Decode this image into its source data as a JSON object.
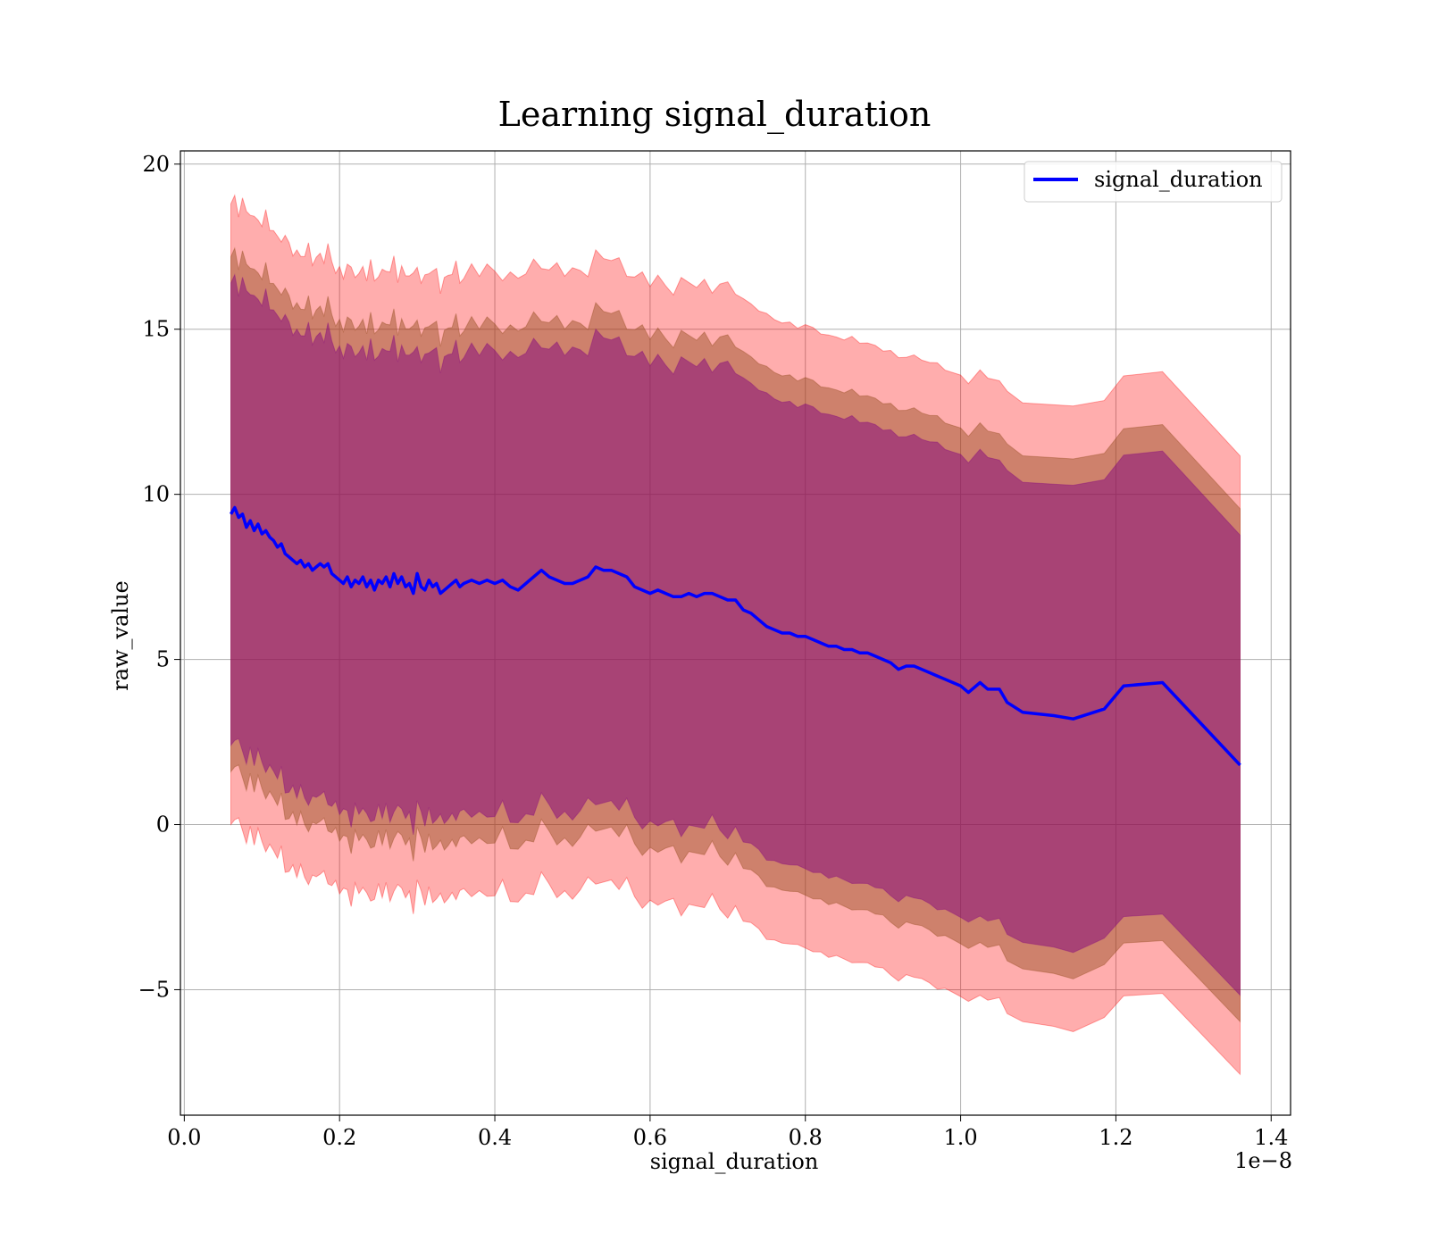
{
  "chart_data": {
    "type": "area",
    "title": "Learning signal_duration",
    "xlabel": "signal_duration",
    "ylabel": "raw_value",
    "x_offset_label": "1e−8",
    "xlim": [
      -0.005,
      1.425
    ],
    "ylim": [
      -8.8,
      20.4
    ],
    "x_ticks": [
      0.0,
      0.2,
      0.4,
      0.6,
      0.8,
      1.0,
      1.2,
      1.4
    ],
    "x_tick_labels": [
      "0.0",
      "0.2",
      "0.4",
      "0.6",
      "0.8",
      "1.0",
      "1.2",
      "1.4"
    ],
    "y_ticks": [
      -5,
      0,
      5,
      10,
      15,
      20
    ],
    "y_tick_labels": [
      "−5",
      "0",
      "5",
      "10",
      "15",
      "20"
    ],
    "grid": true,
    "legend": {
      "position": "top-right",
      "entries": [
        "signal_duration"
      ]
    },
    "colors": {
      "line": "#0000ff",
      "outer_band": "#ff0000",
      "middle_band": "#8b4513",
      "inner_band": "#800080"
    },
    "x": [
      0.06,
      0.065,
      0.07,
      0.075,
      0.08,
      0.085,
      0.09,
      0.095,
      0.1,
      0.105,
      0.11,
      0.115,
      0.12,
      0.125,
      0.13,
      0.135,
      0.14,
      0.145,
      0.15,
      0.155,
      0.16,
      0.165,
      0.17,
      0.175,
      0.18,
      0.185,
      0.19,
      0.195,
      0.2,
      0.205,
      0.21,
      0.215,
      0.22,
      0.225,
      0.23,
      0.235,
      0.24,
      0.245,
      0.25,
      0.255,
      0.26,
      0.265,
      0.27,
      0.275,
      0.28,
      0.285,
      0.29,
      0.295,
      0.3,
      0.305,
      0.31,
      0.315,
      0.32,
      0.325,
      0.33,
      0.335,
      0.34,
      0.345,
      0.35,
      0.355,
      0.36,
      0.37,
      0.38,
      0.39,
      0.4,
      0.41,
      0.42,
      0.43,
      0.44,
      0.45,
      0.46,
      0.47,
      0.48,
      0.49,
      0.5,
      0.51,
      0.52,
      0.53,
      0.54,
      0.55,
      0.56,
      0.57,
      0.58,
      0.59,
      0.6,
      0.61,
      0.62,
      0.63,
      0.64,
      0.65,
      0.66,
      0.67,
      0.68,
      0.69,
      0.7,
      0.71,
      0.72,
      0.73,
      0.74,
      0.75,
      0.76,
      0.77,
      0.78,
      0.79,
      0.8,
      0.81,
      0.82,
      0.83,
      0.84,
      0.85,
      0.86,
      0.87,
      0.88,
      0.89,
      0.9,
      0.91,
      0.92,
      0.93,
      0.94,
      0.95,
      0.96,
      0.97,
      0.98,
      0.99,
      1.0,
      1.01,
      1.025,
      1.035,
      1.05,
      1.06,
      1.08,
      1.12,
      1.145,
      1.185,
      1.21,
      1.26,
      1.36
    ],
    "series": [
      {
        "name": "signal_duration",
        "values": [
          9.4,
          9.6,
          9.3,
          9.4,
          9.0,
          9.2,
          8.9,
          9.1,
          8.8,
          8.9,
          8.7,
          8.6,
          8.4,
          8.5,
          8.2,
          8.1,
          8.0,
          7.9,
          8.0,
          7.8,
          7.9,
          7.7,
          7.8,
          7.9,
          7.8,
          7.9,
          7.6,
          7.5,
          7.4,
          7.3,
          7.5,
          7.2,
          7.4,
          7.3,
          7.5,
          7.2,
          7.4,
          7.1,
          7.4,
          7.3,
          7.5,
          7.2,
          7.6,
          7.3,
          7.5,
          7.2,
          7.3,
          7.0,
          7.6,
          7.2,
          7.1,
          7.4,
          7.2,
          7.3,
          7.0,
          7.1,
          7.2,
          7.3,
          7.4,
          7.2,
          7.3,
          7.4,
          7.3,
          7.4,
          7.3,
          7.4,
          7.2,
          7.1,
          7.3,
          7.5,
          7.7,
          7.5,
          7.4,
          7.3,
          7.3,
          7.4,
          7.5,
          7.8,
          7.7,
          7.7,
          7.6,
          7.5,
          7.2,
          7.1,
          7.0,
          7.1,
          7.0,
          6.9,
          6.9,
          7.0,
          6.9,
          7.0,
          7.0,
          6.9,
          6.8,
          6.8,
          6.5,
          6.4,
          6.2,
          6.0,
          5.9,
          5.8,
          5.8,
          5.7,
          5.7,
          5.6,
          5.5,
          5.4,
          5.4,
          5.3,
          5.3,
          5.2,
          5.2,
          5.1,
          5.0,
          4.9,
          4.7,
          4.8,
          4.8,
          4.7,
          4.6,
          4.5,
          4.4,
          4.3,
          4.2,
          4.0,
          4.3,
          4.1,
          4.1,
          3.7,
          3.4,
          3.3,
          3.2,
          3.5,
          4.2,
          4.3,
          1.8
        ]
      }
    ],
    "bands": [
      {
        "level": "outer",
        "half_width_start": 9.4,
        "half_width_end": 9.4
      },
      {
        "level": "middle",
        "half_width_start": 7.8,
        "half_width_end": 7.8
      },
      {
        "level": "inner",
        "half_width_start": 7.0,
        "half_width_end": 7.0
      }
    ]
  }
}
